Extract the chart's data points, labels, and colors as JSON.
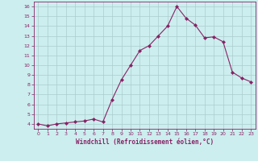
{
  "x": [
    0,
    1,
    2,
    3,
    4,
    5,
    6,
    7,
    8,
    9,
    10,
    11,
    12,
    13,
    14,
    15,
    16,
    17,
    18,
    19,
    20,
    21,
    22,
    23
  ],
  "y": [
    4.0,
    3.8,
    4.0,
    4.1,
    4.2,
    4.3,
    4.5,
    4.2,
    6.5,
    8.5,
    10.0,
    11.5,
    12.0,
    13.0,
    14.0,
    16.0,
    14.8,
    14.1,
    12.8,
    12.9,
    12.4,
    9.3,
    8.7,
    8.3
  ],
  "line_color": "#882266",
  "marker": "D",
  "marker_size": 2,
  "bg_color": "#cceeee",
  "grid_color": "#aacccc",
  "xlabel": "Windchill (Refroidissement éolien,°C)",
  "xlabel_color": "#882266",
  "tick_color": "#882266",
  "ylim": [
    3.5,
    16.5
  ],
  "xlim": [
    -0.5,
    23.5
  ],
  "yticks": [
    4,
    5,
    6,
    7,
    8,
    9,
    10,
    11,
    12,
    13,
    14,
    15,
    16
  ],
  "xticks": [
    0,
    1,
    2,
    3,
    4,
    5,
    6,
    7,
    8,
    9,
    10,
    11,
    12,
    13,
    14,
    15,
    16,
    17,
    18,
    19,
    20,
    21,
    22,
    23
  ]
}
